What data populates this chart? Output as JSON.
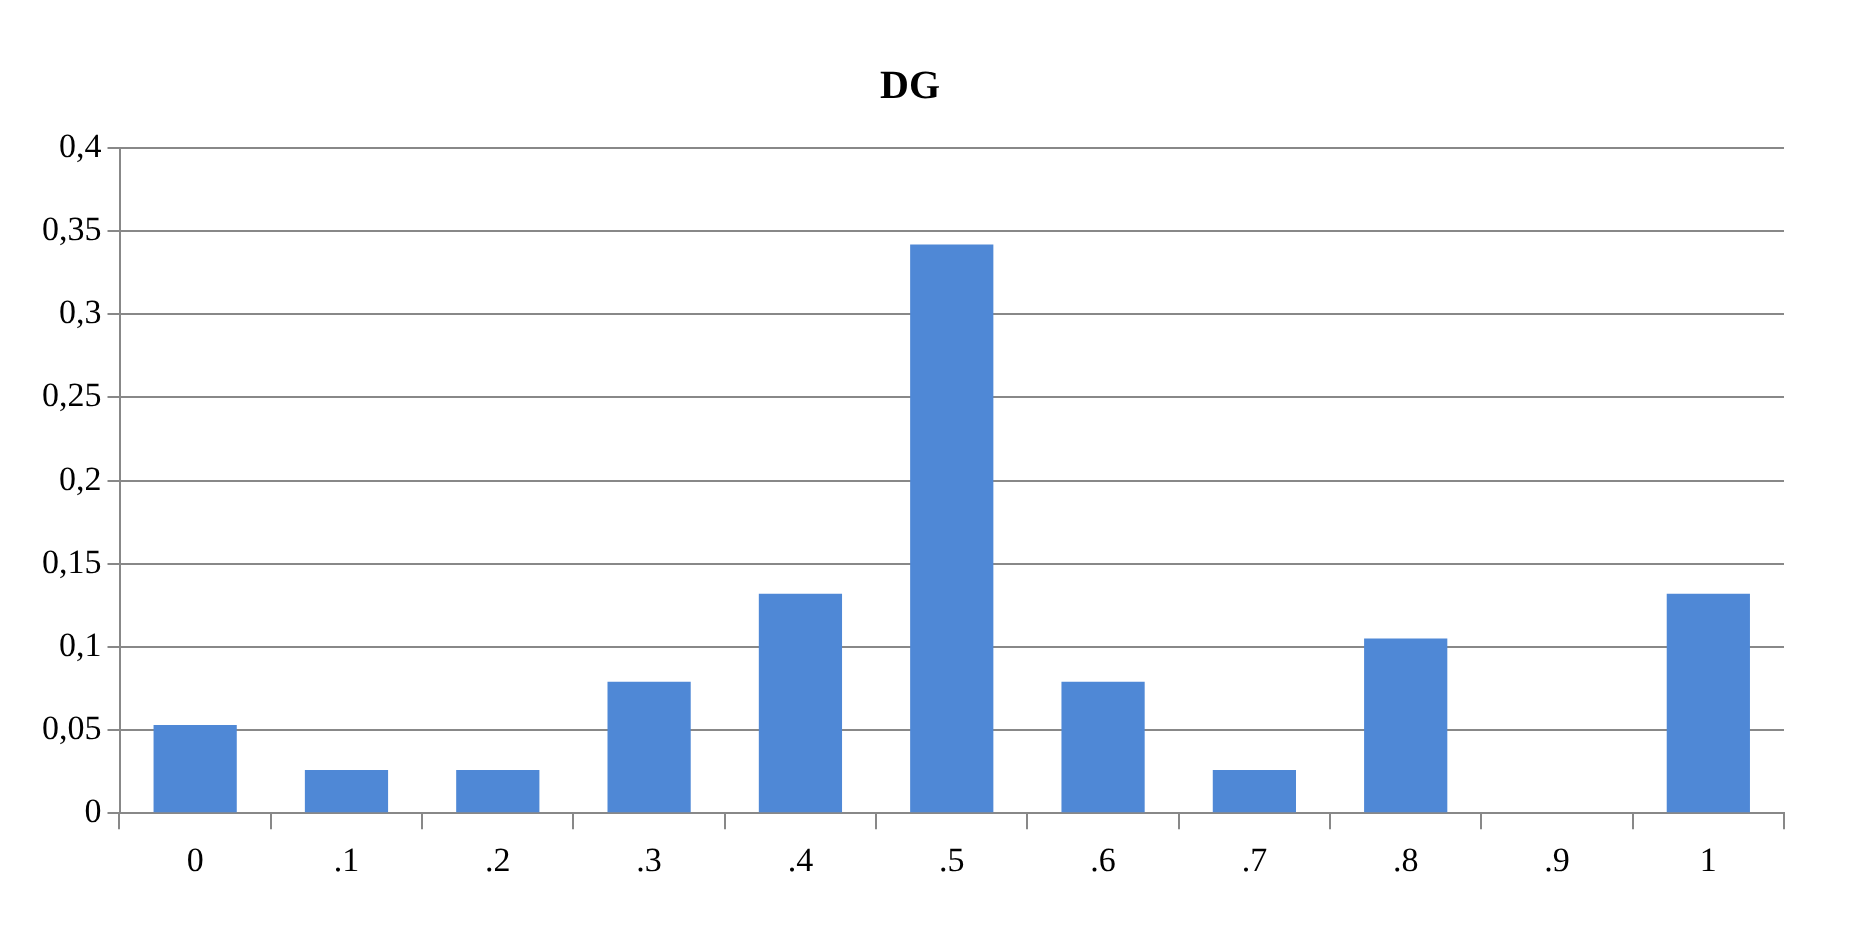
{
  "chart_data": {
    "type": "bar",
    "title": "DG",
    "categories": [
      "0",
      ".1",
      ".2",
      ".3",
      ".4",
      ".5",
      ".6",
      ".7",
      ".8",
      ".9",
      "1"
    ],
    "values": [
      0.053,
      0.026,
      0.026,
      0.079,
      0.132,
      0.342,
      0.079,
      0.026,
      0.105,
      0,
      0.132
    ],
    "color": "#4f88d6",
    "ylim": [
      0,
      0.4
    ],
    "yticks": [
      0,
      {
        "value": 0.05,
        "label": "0,05"
      },
      {
        "value": 0.1,
        "label": "0,1"
      },
      {
        "value": 0.15,
        "label": "0,15"
      },
      {
        "value": 0.2,
        "label": "0,2"
      },
      {
        "value": 0.25,
        "label": "0,25"
      },
      {
        "value": 0.3,
        "label": "0,3"
      },
      {
        "value": 0.35,
        "label": "0,35"
      },
      {
        "value": 0.4,
        "label": "0,4"
      }
    ],
    "grid": "y"
  }
}
